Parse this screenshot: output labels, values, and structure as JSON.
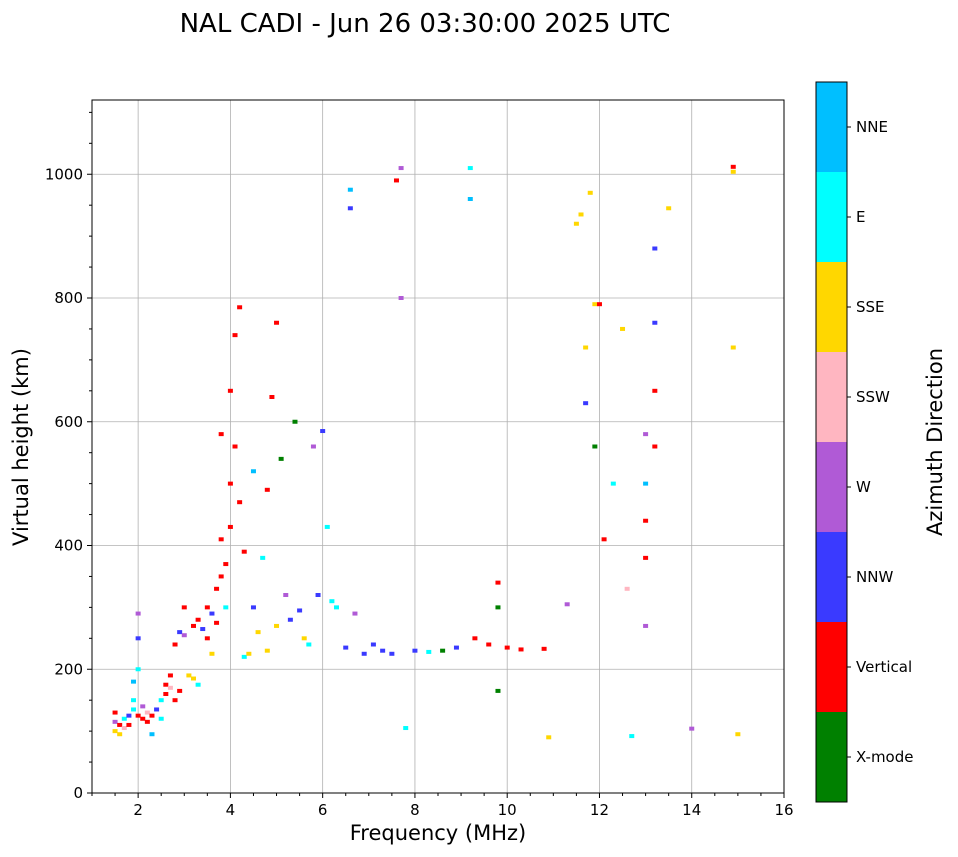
{
  "chart_data": {
    "type": "scatter",
    "title": "NAL CADI - Jun 26 03:30:00 2025 UTC",
    "xlabel": "Frequency (MHz)",
    "ylabel": "Virtual height (km)",
    "xlim": [
      1,
      16
    ],
    "ylim": [
      0,
      1120
    ],
    "xticks": [
      2,
      4,
      6,
      8,
      10,
      12,
      14,
      16
    ],
    "yticks": [
      0,
      200,
      400,
      600,
      800,
      1000
    ],
    "grid": true,
    "colorbar": {
      "title": "Azimuth Direction",
      "categories": [
        {
          "name": "X-mode",
          "color": "#008000"
        },
        {
          "name": "Vertical",
          "color": "#ff0000"
        },
        {
          "name": "NNW",
          "color": "#3a3aff"
        },
        {
          "name": "W",
          "color": "#b05ad6"
        },
        {
          "name": "SSW",
          "color": "#ffb6c1"
        },
        {
          "name": "SSE",
          "color": "#ffd700"
        },
        {
          "name": "E",
          "color": "#00ffff"
        },
        {
          "name": "NNE",
          "color": "#00bfff"
        }
      ]
    },
    "points": [
      [
        1.5,
        130,
        "Vertical"
      ],
      [
        1.5,
        115,
        "W"
      ],
      [
        1.5,
        100,
        "SSE"
      ],
      [
        1.6,
        110,
        "Vertical"
      ],
      [
        1.6,
        95,
        "SSE"
      ],
      [
        1.7,
        120,
        "E"
      ],
      [
        1.7,
        105,
        "SSW"
      ],
      [
        1.8,
        125,
        "NNW"
      ],
      [
        1.8,
        110,
        "Vertical"
      ],
      [
        1.9,
        135,
        "E"
      ],
      [
        1.9,
        150,
        "E"
      ],
      [
        1.9,
        180,
        "NNE"
      ],
      [
        2.0,
        200,
        "E"
      ],
      [
        2.0,
        250,
        "NNW"
      ],
      [
        2.0,
        290,
        "W"
      ],
      [
        2.0,
        125,
        "Vertical"
      ],
      [
        2.1,
        120,
        "Vertical"
      ],
      [
        2.1,
        140,
        "W"
      ],
      [
        2.2,
        115,
        "Vertical"
      ],
      [
        2.2,
        130,
        "SSW"
      ],
      [
        2.3,
        95,
        "NNE"
      ],
      [
        2.3,
        125,
        "Vertical"
      ],
      [
        2.4,
        135,
        "NNW"
      ],
      [
        2.5,
        120,
        "E"
      ],
      [
        2.5,
        150,
        "E"
      ],
      [
        2.6,
        160,
        "Vertical"
      ],
      [
        2.6,
        175,
        "Vertical"
      ],
      [
        2.7,
        170,
        "SSW"
      ],
      [
        2.7,
        190,
        "Vertical"
      ],
      [
        2.8,
        150,
        "Vertical"
      ],
      [
        2.8,
        240,
        "Vertical"
      ],
      [
        2.9,
        165,
        "Vertical"
      ],
      [
        2.9,
        260,
        "NNW"
      ],
      [
        3.0,
        300,
        "Vertical"
      ],
      [
        3.0,
        255,
        "W"
      ],
      [
        3.1,
        190,
        "SSE"
      ],
      [
        3.2,
        270,
        "Vertical"
      ],
      [
        3.2,
        185,
        "SSE"
      ],
      [
        3.3,
        175,
        "E"
      ],
      [
        3.3,
        280,
        "Vertical"
      ],
      [
        3.4,
        265,
        "NNW"
      ],
      [
        3.5,
        300,
        "Vertical"
      ],
      [
        3.5,
        250,
        "Vertical"
      ],
      [
        3.6,
        290,
        "NNW"
      ],
      [
        3.6,
        225,
        "SSE"
      ],
      [
        3.7,
        330,
        "Vertical"
      ],
      [
        3.7,
        275,
        "Vertical"
      ],
      [
        3.8,
        350,
        "Vertical"
      ],
      [
        3.8,
        410,
        "Vertical"
      ],
      [
        3.8,
        580,
        "Vertical"
      ],
      [
        3.9,
        300,
        "E"
      ],
      [
        3.9,
        370,
        "Vertical"
      ],
      [
        4.0,
        430,
        "Vertical"
      ],
      [
        4.0,
        500,
        "Vertical"
      ],
      [
        4.0,
        650,
        "Vertical"
      ],
      [
        4.1,
        740,
        "Vertical"
      ],
      [
        4.1,
        560,
        "Vertical"
      ],
      [
        4.2,
        470,
        "Vertical"
      ],
      [
        4.2,
        785,
        "Vertical"
      ],
      [
        4.3,
        390,
        "Vertical"
      ],
      [
        4.3,
        220,
        "E"
      ],
      [
        4.4,
        225,
        "SSE"
      ],
      [
        4.5,
        520,
        "NNE"
      ],
      [
        4.5,
        300,
        "NNW"
      ],
      [
        4.6,
        260,
        "SSE"
      ],
      [
        4.7,
        380,
        "E"
      ],
      [
        4.8,
        230,
        "SSE"
      ],
      [
        4.8,
        490,
        "Vertical"
      ],
      [
        4.9,
        640,
        "Vertical"
      ],
      [
        5.0,
        270,
        "SSE"
      ],
      [
        5.0,
        760,
        "Vertical"
      ],
      [
        5.1,
        540,
        "X-mode"
      ],
      [
        5.2,
        320,
        "W"
      ],
      [
        5.3,
        280,
        "NNW"
      ],
      [
        5.4,
        600,
        "X-mode"
      ],
      [
        5.5,
        295,
        "NNW"
      ],
      [
        5.6,
        250,
        "SSE"
      ],
      [
        5.7,
        240,
        "E"
      ],
      [
        5.8,
        560,
        "W"
      ],
      [
        5.9,
        320,
        "NNW"
      ],
      [
        6.0,
        585,
        "NNW"
      ],
      [
        6.1,
        430,
        "E"
      ],
      [
        6.2,
        310,
        "E"
      ],
      [
        6.3,
        300,
        "E"
      ],
      [
        6.5,
        235,
        "NNW"
      ],
      [
        6.6,
        975,
        "NNE"
      ],
      [
        6.6,
        945,
        "NNW"
      ],
      [
        6.7,
        290,
        "W"
      ],
      [
        6.9,
        225,
        "NNW"
      ],
      [
        7.1,
        240,
        "NNW"
      ],
      [
        7.3,
        230,
        "NNW"
      ],
      [
        7.5,
        225,
        "NNW"
      ],
      [
        7.6,
        990,
        "Vertical"
      ],
      [
        7.7,
        1010,
        "W"
      ],
      [
        7.7,
        800,
        "W"
      ],
      [
        7.8,
        105,
        "E"
      ],
      [
        8.0,
        230,
        "NNW"
      ],
      [
        8.3,
        228,
        "E"
      ],
      [
        8.6,
        230,
        "X-mode"
      ],
      [
        8.9,
        235,
        "NNW"
      ],
      [
        9.2,
        1010,
        "E"
      ],
      [
        9.2,
        960,
        "NNE"
      ],
      [
        9.3,
        250,
        "Vertical"
      ],
      [
        9.6,
        240,
        "Vertical"
      ],
      [
        9.8,
        340,
        "Vertical"
      ],
      [
        9.8,
        300,
        "X-mode"
      ],
      [
        9.8,
        165,
        "X-mode"
      ],
      [
        10.0,
        235,
        "Vertical"
      ],
      [
        10.3,
        232,
        "Vertical"
      ],
      [
        10.8,
        233,
        "Vertical"
      ],
      [
        10.9,
        90,
        "SSE"
      ],
      [
        11.3,
        305,
        "W"
      ],
      [
        11.5,
        920,
        "SSE"
      ],
      [
        11.6,
        935,
        "SSE"
      ],
      [
        11.7,
        720,
        "SSE"
      ],
      [
        11.7,
        630,
        "NNW"
      ],
      [
        11.8,
        970,
        "SSE"
      ],
      [
        11.9,
        790,
        "SSE"
      ],
      [
        11.9,
        560,
        "X-mode"
      ],
      [
        12.0,
        790,
        "Vertical"
      ],
      [
        12.1,
        410,
        "Vertical"
      ],
      [
        12.3,
        500,
        "E"
      ],
      [
        12.5,
        750,
        "SSE"
      ],
      [
        12.6,
        330,
        "SSW"
      ],
      [
        12.7,
        92,
        "E"
      ],
      [
        13.0,
        580,
        "W"
      ],
      [
        13.0,
        500,
        "NNE"
      ],
      [
        13.0,
        440,
        "Vertical"
      ],
      [
        13.0,
        380,
        "Vertical"
      ],
      [
        13.0,
        270,
        "W"
      ],
      [
        13.2,
        880,
        "NNW"
      ],
      [
        13.2,
        760,
        "NNW"
      ],
      [
        13.2,
        650,
        "Vertical"
      ],
      [
        13.2,
        560,
        "Vertical"
      ],
      [
        13.5,
        945,
        "SSE"
      ],
      [
        14.0,
        104,
        "W"
      ],
      [
        14.9,
        1012,
        "Vertical"
      ],
      [
        14.9,
        1004,
        "SSE"
      ],
      [
        14.9,
        720,
        "SSE"
      ],
      [
        15.0,
        95,
        "SSE"
      ]
    ]
  }
}
